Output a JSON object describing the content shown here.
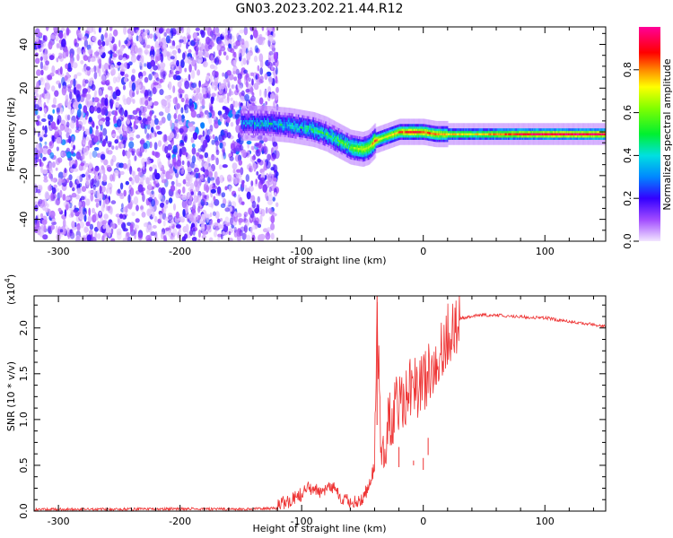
{
  "title": "GN03.2023.202.21.44.R12",
  "chart_data": [
    {
      "type": "heatmap",
      "xlabel": "Height of straight line (km)",
      "ylabel": "Frequency (Hz)",
      "xlim": [
        -320,
        150
      ],
      "ylim": [
        -50,
        48
      ],
      "xticks": [
        -300,
        -200,
        -100,
        0,
        100
      ],
      "xtick_labels": [
        "-300",
        "-200",
        "-100",
        "0",
        "100"
      ],
      "yticks": [
        -40,
        -20,
        0,
        20,
        40
      ],
      "ytick_labels": [
        "-40",
        "-20",
        "0",
        "20",
        "40"
      ],
      "colorbar": {
        "label": "Normalized spectral amplitude",
        "range": [
          0.0,
          1.0
        ],
        "ticks": [
          0.0,
          0.2,
          0.4,
          0.6,
          0.8
        ],
        "tick_labels": [
          "0.0",
          "0.2",
          "0.4",
          "0.6",
          "0.8"
        ],
        "colormap": "hsv-like (magenta-violet-blue-cyan-green-yellow-red-magenta)"
      },
      "ridge": {
        "x": [
          -150,
          -130,
          -110,
          -100,
          -90,
          -80,
          -70,
          -60,
          -50,
          -45,
          -40,
          -35,
          -30,
          -20,
          -10,
          0,
          10,
          20,
          40,
          60,
          80,
          100,
          120,
          150
        ],
        "frequency": [
          4,
          4,
          3,
          2,
          1,
          -1,
          -4,
          -7,
          -8,
          -7,
          -4,
          -3,
          -2,
          0,
          0,
          0,
          -1,
          -1,
          -1,
          -1,
          -1,
          -1,
          -1,
          -1
        ],
        "amplitude": [
          0.35,
          0.4,
          0.45,
          0.45,
          0.5,
          0.5,
          0.55,
          0.6,
          0.7,
          0.65,
          0.85,
          0.7,
          0.7,
          0.8,
          0.9,
          0.85,
          0.8,
          0.75,
          0.7,
          0.8,
          0.9,
          0.95,
          0.95,
          0.95
        ]
      },
      "noise_region": {
        "x_range": [
          -320,
          -120
        ],
        "frequency_range": [
          -50,
          48
        ]
      }
    },
    {
      "type": "line",
      "xlabel": "Height of straight line (km)",
      "ylabel": "SNR (10 * v/v)",
      "scale_label": "(x10",
      "scale_exponent": "4",
      "scale_suffix": ")",
      "xlim": [
        -320,
        150
      ],
      "ylim": [
        0,
        23500
      ],
      "xticks": [
        -300,
        -200,
        -100,
        0,
        100
      ],
      "xtick_labels": [
        "-300",
        "-200",
        "-100",
        "0",
        "100"
      ],
      "yticks": [
        0,
        5000,
        10000,
        15000,
        20000
      ],
      "ytick_labels": [
        "0.0",
        "0.5",
        "1.0",
        "1.5",
        "2.0"
      ],
      "series": [
        {
          "color": "#ee3333",
          "x": [
            -320,
            -250,
            -200,
            -150,
            -120,
            -110,
            -100,
            -95,
            -90,
            -80,
            -75,
            -70,
            -60,
            -50,
            -45,
            -40,
            -38,
            -35,
            -30,
            -25,
            -20,
            -15,
            -10,
            -5,
            0,
            5,
            10,
            15,
            20,
            25,
            30,
            40,
            50,
            60,
            80,
            100,
            120,
            150
          ],
          "y": [
            200,
            200,
            250,
            200,
            300,
            800,
            1500,
            2500,
            2000,
            1800,
            2400,
            1500,
            700,
            700,
            2500,
            4500,
            23500,
            7000,
            9000,
            11000,
            12000,
            13000,
            14000,
            13500,
            14500,
            15500,
            16500,
            18000,
            19500,
            20500,
            21000,
            21300,
            21400,
            21400,
            21200,
            21100,
            20700,
            20200
          ]
        }
      ],
      "series_extreme_points": [
        {
          "x": -38,
          "y": 23500
        },
        {
          "x": -20,
          "y": 7000
        },
        {
          "x": -8,
          "y": 5000
        },
        {
          "x": 0,
          "y": 4500
        },
        {
          "x": 4,
          "y": 8000
        }
      ]
    }
  ]
}
